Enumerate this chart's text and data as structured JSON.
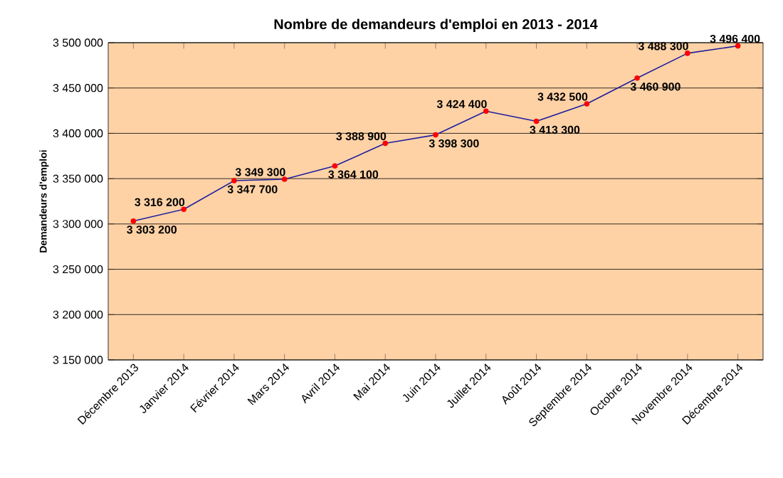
{
  "chart_data": {
    "type": "line",
    "title": "Nombre de demandeurs d'emploi en 2013 - 2014",
    "ylabel": "Demandeurs d'emploi",
    "categories": [
      "Décembre 2013",
      "Janvier 2014",
      "Février 2014",
      "Mars 2014",
      "Avril 2014",
      "Mai 2014",
      "Juin 2014",
      "Juillet 2014",
      "Août 2014",
      "Septembre 2014",
      "Octobre 2014",
      "Novembre 2014",
      "Décembre 2014"
    ],
    "series": [
      {
        "color": "#1f1f9c",
        "values": [
          3303200,
          3316200,
          3347700,
          3349300,
          3364100,
          3388900,
          3398300,
          3424400,
          3413300,
          3432500,
          3460900,
          3488300,
          3496400
        ],
        "value_labels": [
          "3 303 200",
          "3 316 200",
          "3 347 700",
          "3 349 300",
          "3 364 100",
          "3 388 900",
          "3 398 300",
          "3 424 400",
          "3 413 300",
          "3 432 500",
          "3 460 900",
          "3 488 300",
          "3 496 400"
        ]
      }
    ],
    "ylim": [
      3150000,
      3500000
    ],
    "yticks": [
      {
        "value": 3150000,
        "label": "3 150 000"
      },
      {
        "value": 3200000,
        "label": "3 200 000"
      },
      {
        "value": 3250000,
        "label": "3 250 000"
      },
      {
        "value": 3300000,
        "label": "3 300 000"
      },
      {
        "value": 3350000,
        "label": "3 350 000"
      },
      {
        "value": 3400000,
        "label": "3 400 000"
      },
      {
        "value": 3450000,
        "label": "3 450 000"
      },
      {
        "value": 3500000,
        "label": "3 500 000"
      }
    ],
    "grid": "y",
    "marker": "circle"
  }
}
